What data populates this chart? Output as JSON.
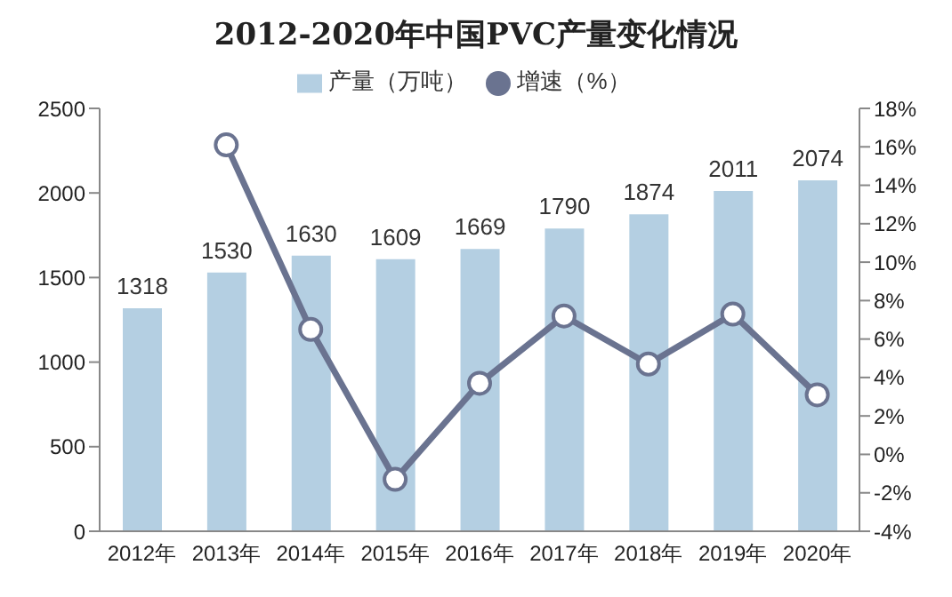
{
  "chart_data": {
    "type": "bar",
    "title": "2012-2020年中国PVC产量变化情况",
    "categories": [
      "2012年",
      "2013年",
      "2014年",
      "2015年",
      "2016年",
      "2017年",
      "2018年",
      "2019年",
      "2020年"
    ],
    "series": [
      {
        "name": "产量（万吨）",
        "color": "#b4cfe2",
        "values": [
          1318,
          1530,
          1630,
          1609,
          1669,
          1790,
          1874,
          2011,
          2074
        ],
        "value_labels": [
          "1318",
          "1530",
          "1630",
          "1609",
          "1669",
          "1790",
          "1874",
          "2011",
          "2074"
        ]
      },
      {
        "name": "增速（%）",
        "type": "line",
        "axis": "y2",
        "color": "#6a7390",
        "marker": "circle",
        "values": [
          null,
          16.1,
          6.5,
          -1.3,
          3.7,
          7.2,
          4.7,
          7.3,
          3.1
        ]
      }
    ],
    "ylim": [
      0,
      2500
    ],
    "yticks": [
      0,
      500,
      1000,
      1500,
      2000,
      2500
    ],
    "y2lim": [
      -4,
      18
    ],
    "y2ticks": [
      {
        "value": -4,
        "label": "-4%"
      },
      {
        "value": -2,
        "label": "-2%"
      },
      {
        "value": 0,
        "label": "0%"
      },
      {
        "value": 2,
        "label": "2%"
      },
      {
        "value": 4,
        "label": "4%"
      },
      {
        "value": 6,
        "label": "6%"
      },
      {
        "value": 8,
        "label": "8%"
      },
      {
        "value": 10,
        "label": "10%"
      },
      {
        "value": 12,
        "label": "12%"
      },
      {
        "value": 14,
        "label": "14%"
      },
      {
        "value": 16,
        "label": "16%"
      },
      {
        "value": 18,
        "label": "18%"
      }
    ],
    "legend": "top",
    "grid": false
  }
}
